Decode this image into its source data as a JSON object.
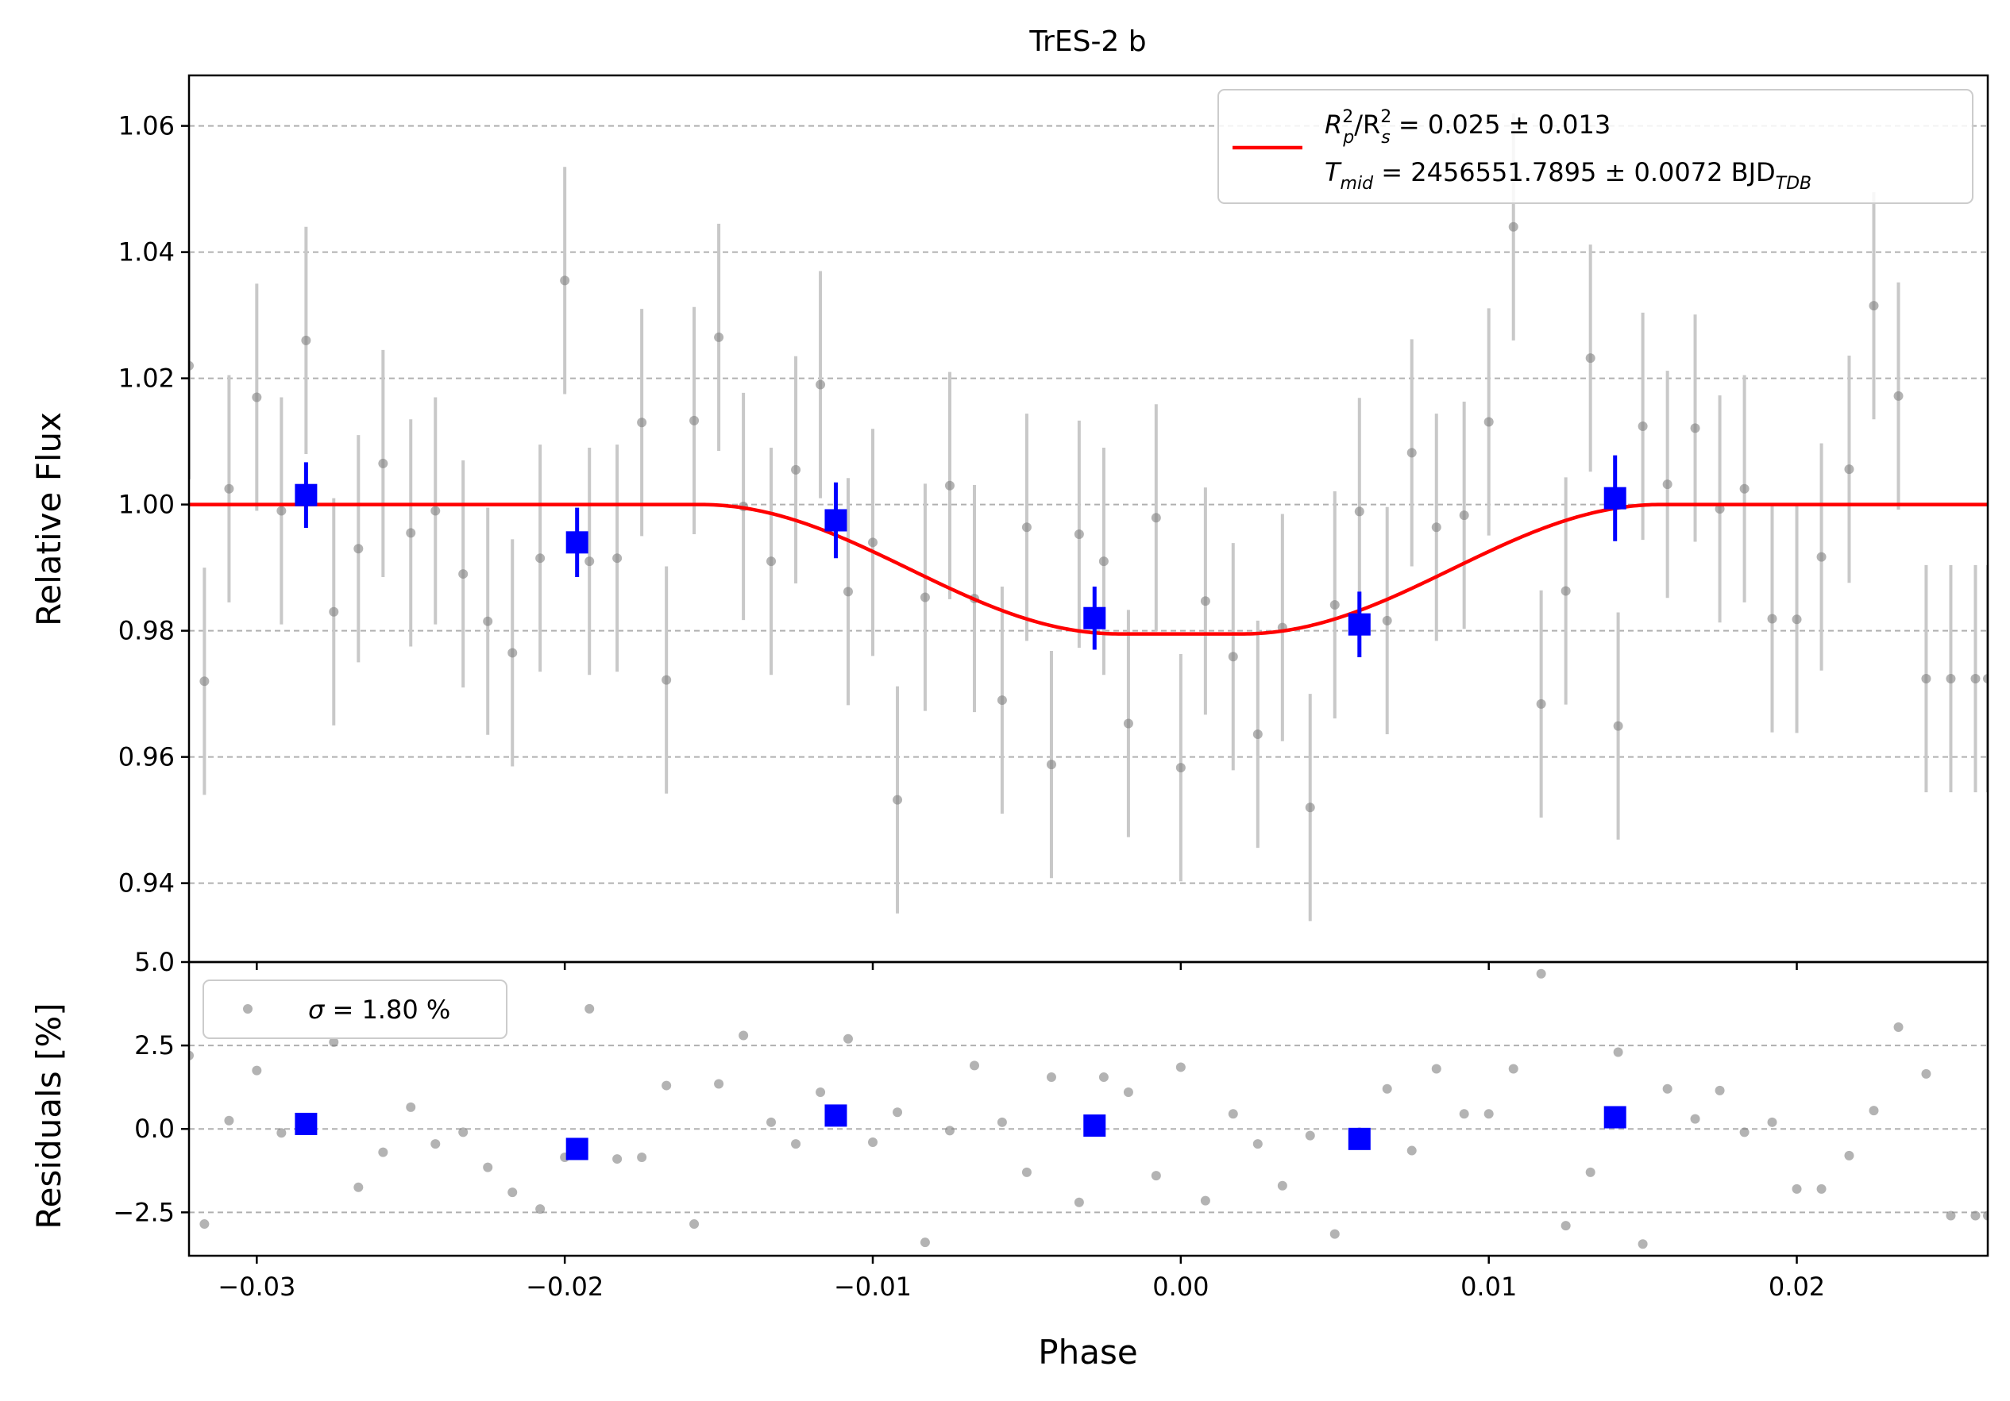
{
  "chart_data": [
    {
      "type": "scatter",
      "panel": "transit",
      "title": "TrES-2 b",
      "ylabel": "Relative Flux",
      "xlim": [
        -0.0322,
        0.0262
      ],
      "ylim": [
        0.9275,
        1.068
      ],
      "grid": true,
      "x_ticks": [
        -0.03,
        -0.02,
        -0.01,
        0.0,
        0.01,
        0.02
      ],
      "y_ticks": [
        0.94,
        0.96,
        0.98,
        1.0,
        1.02,
        1.04,
        1.06
      ],
      "legend": {
        "placement": "top-right",
        "line1_a": "R",
        "line1_a_sup": "2",
        "line1_a_sub": "p",
        "line1_b": "/R",
        "line1_b_sup": "2",
        "line1_b_sub": "s",
        "line1_value": " = 0.025 ± 0.013",
        "line2_a": "T",
        "line2_a_sub": "mid",
        "line2_value": " = 2456551.7895 ± 0.0072 BJD",
        "line2_unit_sub": "TDB"
      },
      "model": {
        "color": "#ff0000",
        "baseline": 1.0,
        "depth": 0.0205,
        "t_mid": 0.0,
        "t_contact_outer": 0.0156,
        "t_contact_inner": 0.002
      },
      "raw_points": {
        "color": "#808080",
        "errorbar_color": "#c8c8c8",
        "x": [
          -0.0322,
          -0.0317,
          -0.0309,
          -0.03,
          -0.0292,
          -0.0284,
          -0.0275,
          -0.0267,
          -0.0259,
          -0.025,
          -0.0242,
          -0.0233,
          -0.0225,
          -0.0217,
          -0.0208,
          -0.02,
          -0.0192,
          -0.0183,
          -0.0175,
          -0.0167,
          -0.0158,
          -0.015,
          -0.0142,
          -0.0133,
          -0.0125,
          -0.0117,
          -0.0108,
          -0.01,
          -0.0092,
          -0.0083,
          -0.0075,
          -0.0067,
          -0.0058,
          -0.005,
          -0.0042,
          -0.0033,
          -0.0025,
          -0.0017,
          -0.0008,
          0.0,
          0.0008,
          0.0017,
          0.0025,
          0.0033,
          0.0042,
          0.005,
          0.0058,
          0.0067,
          0.0075,
          0.0083,
          0.0092,
          0.01,
          0.0108,
          0.0117,
          0.0125,
          0.0133,
          0.0142,
          0.015,
          0.0158,
          0.0167,
          0.0175,
          0.0183,
          0.0192,
          0.02,
          0.0208,
          0.0217,
          0.0225,
          0.0233,
          0.0242,
          0.025,
          0.0258,
          0.0262
        ],
        "y": [
          1.022,
          0.972,
          1.0025,
          1.017,
          0.999,
          1.026,
          0.983,
          0.993,
          1.0065,
          0.9955,
          0.999,
          0.989,
          0.9815,
          0.9765,
          0.9915,
          1.0355,
          0.991,
          0.9915,
          1.013,
          0.9722,
          1.0133,
          1.0265,
          0.9997,
          0.991,
          1.0055,
          1.019,
          0.9862,
          0.994,
          0.9532,
          0.9853,
          1.003,
          0.9851,
          0.969,
          0.9964,
          0.9588,
          0.9953,
          0.991,
          0.9653,
          0.9979,
          0.9583,
          0.9847,
          0.9759,
          0.9636,
          0.9805,
          0.952,
          0.9841,
          0.9989,
          0.9816,
          1.0082,
          0.9964,
          0.9983,
          1.0131,
          1.044,
          0.9684,
          0.9863,
          1.0232,
          0.9649,
          1.0124,
          1.0032,
          1.0121,
          0.9993,
          1.0025,
          0.9819,
          0.9818,
          0.9917,
          1.0056,
          1.0315,
          1.0172,
          0.9724,
          0.9724,
          0.9724,
          0.9724
        ],
        "err": 0.018
      },
      "binned_points": {
        "color": "#0000ff",
        "x": [
          -0.0284,
          -0.0196,
          -0.0112,
          -0.0028,
          0.0058,
          0.0141
        ],
        "y": [
          1.0015,
          0.994,
          0.9975,
          0.982,
          0.981,
          1.001
        ],
        "err": [
          0.0052,
          0.0055,
          0.006,
          0.005,
          0.0052,
          0.0068
        ]
      }
    },
    {
      "type": "scatter",
      "panel": "residuals",
      "xlabel": "Phase",
      "ylabel": "Residuals [%]",
      "xlim": [
        -0.0322,
        0.0262
      ],
      "ylim": [
        -3.8,
        5.0
      ],
      "grid": true,
      "x_ticks": [
        -0.03,
        -0.02,
        -0.01,
        0.0,
        0.01,
        0.02
      ],
      "x_tick_labels": [
        "−0.03",
        "−0.02",
        "−0.01",
        "0.00",
        "0.01",
        "0.02"
      ],
      "y_ticks": [
        -2.5,
        0.0,
        2.5,
        5.0
      ],
      "y_tick_labels": [
        "−2.5",
        "0.0",
        "2.5",
        "5.0"
      ],
      "legend": {
        "placement": "top-left",
        "sigma_symbol": "σ",
        "text": " = 1.80 %"
      },
      "raw_points": {
        "color": "#808080",
        "x": [
          -0.0322,
          -0.0317,
          -0.0309,
          -0.03,
          -0.0292,
          -0.0275,
          -0.0267,
          -0.0259,
          -0.025,
          -0.0242,
          -0.0233,
          -0.0225,
          -0.0217,
          -0.0208,
          -0.02,
          -0.0192,
          -0.0183,
          -0.0175,
          -0.0167,
          -0.0158,
          -0.015,
          -0.0142,
          -0.0133,
          -0.0125,
          -0.0117,
          -0.0108,
          -0.01,
          -0.0092,
          -0.0083,
          -0.0075,
          -0.0067,
          -0.0058,
          -0.005,
          -0.0042,
          -0.0033,
          -0.0025,
          -0.0017,
          -0.0008,
          0.0,
          0.0008,
          0.0017,
          0.0025,
          0.0033,
          0.0042,
          0.005,
          0.0058,
          0.0067,
          0.0075,
          0.0083,
          0.0092,
          0.01,
          0.0108,
          0.0117,
          0.0125,
          0.0133,
          0.0142,
          0.015,
          0.0158,
          0.0167,
          0.0175,
          0.0183,
          0.0192,
          0.02,
          0.0208,
          0.0217,
          0.0225,
          0.0233,
          0.0242,
          0.025,
          0.0258,
          0.0262
        ],
        "y": [
          2.2,
          -2.85,
          0.25,
          1.75,
          -0.12,
          2.6,
          -1.75,
          -0.7,
          0.65,
          -0.45,
          -0.1,
          -1.15,
          -1.9,
          -2.4,
          -0.85,
          3.6,
          -0.9,
          -0.85,
          1.3,
          -2.85,
          1.35,
          2.8,
          0.2,
          -0.45,
          1.1,
          2.7,
          -0.4,
          0.5,
          -3.4,
          -0.05,
          1.9,
          0.2,
          -1.3,
          1.55,
          -2.2,
          1.55,
          1.1,
          -1.4,
          1.85,
          -2.15,
          0.45,
          -0.45,
          -1.7,
          -0.2,
          -3.15,
          -0.1,
          1.2,
          -0.65,
          1.8,
          0.45,
          0.45,
          1.8,
          4.65,
          -2.9,
          -1.3,
          2.3,
          -3.45,
          1.2,
          0.3,
          1.15,
          -0.1,
          0.2,
          -1.8,
          -1.8,
          -0.8,
          0.55,
          3.05,
          1.65,
          -2.6,
          -2.6,
          -2.6
        ]
      },
      "binned_points": {
        "color": "#0000ff",
        "x": [
          -0.0284,
          -0.0196,
          -0.0112,
          -0.0028,
          0.0058,
          0.0141
        ],
        "y": [
          0.15,
          -0.6,
          0.4,
          0.1,
          -0.3,
          0.35
        ]
      }
    }
  ]
}
